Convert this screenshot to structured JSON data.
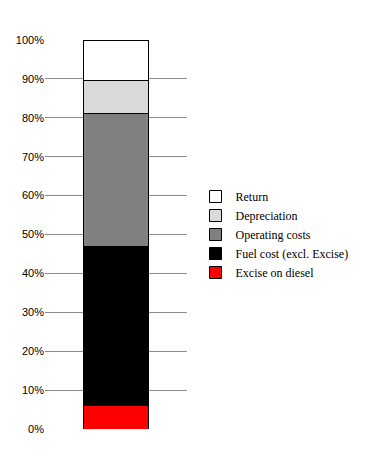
{
  "chart_data": {
    "type": "bar",
    "stacked": true,
    "grid": true,
    "legend": "right",
    "tick_labels": "y",
    "categories": [
      null
    ],
    "series": [
      {
        "name": "Excise on diesel",
        "color": "#ff0000",
        "values": [
          6
        ]
      },
      {
        "name": "Fuel cost (excl. Excise)",
        "color": "#000000",
        "values": [
          41
        ]
      },
      {
        "name": "Operating costs",
        "color": "#808080",
        "values": [
          34
        ]
      },
      {
        "name": "Depreciation",
        "color": "#d9d9d9",
        "values": [
          8.5
        ]
      },
      {
        "name": "Return",
        "color": "#ffffff",
        "values": [
          10.5
        ]
      }
    ],
    "ylim": [
      0,
      100
    ],
    "yticks": [
      {
        "value": 0,
        "label": "0%"
      },
      {
        "value": 10,
        "label": "10%"
      },
      {
        "value": 20,
        "label": "20%"
      },
      {
        "value": 30,
        "label": "30%"
      },
      {
        "value": 40,
        "label": "40%"
      },
      {
        "value": 50,
        "label": "50%"
      },
      {
        "value": 60,
        "label": "60%"
      },
      {
        "value": 70,
        "label": "70%"
      },
      {
        "value": 80,
        "label": "80%"
      },
      {
        "value": 90,
        "label": "90%"
      },
      {
        "value": 100,
        "label": "100%"
      }
    ]
  }
}
